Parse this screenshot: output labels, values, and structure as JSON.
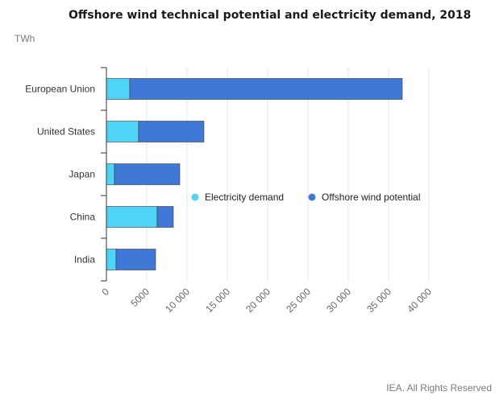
{
  "chart_data": {
    "type": "bar",
    "orientation": "horizontal",
    "stacked": true,
    "title": "Offshore wind technical potential and electricity demand, 2018",
    "unit": "TWh",
    "categories": [
      "European Union",
      "United States",
      "Japan",
      "China",
      "India"
    ],
    "series": [
      {
        "name": "Electricity demand",
        "color": "#4fd3f7",
        "values": [
          2900,
          4000,
          1000,
          6300,
          1200
        ]
      },
      {
        "name": "Offshore wind potential",
        "color": "#3f78d6",
        "values": [
          33800,
          8100,
          8100,
          2000,
          4900
        ]
      }
    ],
    "xlim": [
      0,
      40000
    ],
    "x_ticks": [
      0,
      5000,
      10000,
      15000,
      20000,
      25000,
      30000,
      35000,
      40000
    ],
    "x_tick_labels": [
      "0",
      "5000",
      "10 000",
      "15 000",
      "20 000",
      "25 000",
      "30 000",
      "35 000",
      "40 000"
    ],
    "grid": true,
    "legend_position": "right"
  },
  "credit": "IEA. All Rights Reserved"
}
